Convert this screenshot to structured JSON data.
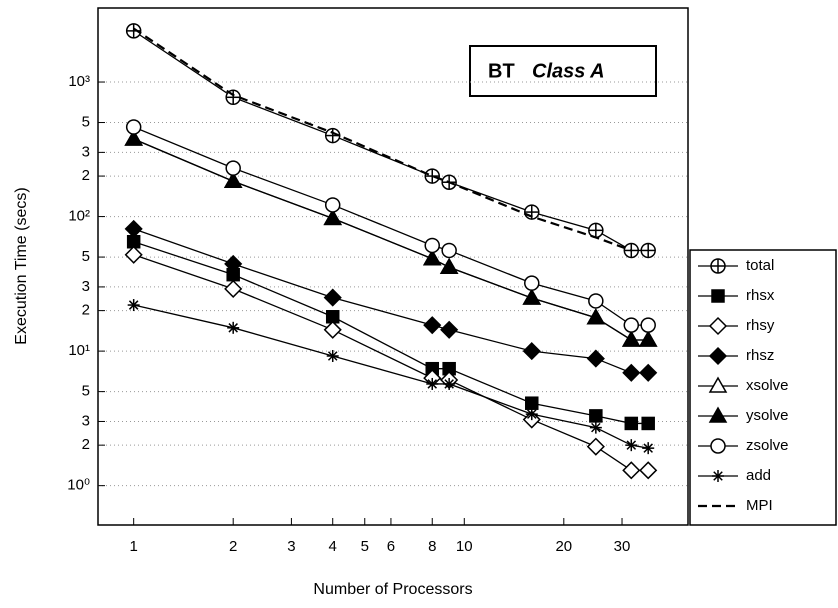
{
  "chart_data": {
    "type": "line",
    "title": "BT",
    "subtitle": "Class A",
    "x_label": "Number of Processors",
    "y_label": "Execution Time  (secs)",
    "x_scale": "log",
    "y_scale": "log",
    "grid": true,
    "legend": "right",
    "x": [
      1,
      2,
      4,
      8,
      9,
      16,
      25,
      32,
      36
    ],
    "xlim": [
      0.78,
      47.5
    ],
    "xticks": [
      1,
      2,
      3,
      4,
      5,
      6,
      8,
      10,
      20,
      30
    ],
    "ylim": [
      0.51,
      3550
    ],
    "yticks": [
      {
        "value": 1,
        "label": "10⁰"
      },
      2,
      3,
      5,
      {
        "value": 10,
        "label": "10¹"
      },
      {
        "value": 20,
        "label": "2"
      },
      {
        "value": 30,
        "label": "3"
      },
      {
        "value": 50,
        "label": "5"
      },
      {
        "value": 100,
        "label": "10²"
      },
      {
        "value": 200,
        "label": "2"
      },
      {
        "value": 300,
        "label": "3"
      },
      {
        "value": 500,
        "label": "5"
      },
      {
        "value": 1000,
        "label": "10³"
      }
    ],
    "series": [
      {
        "name": "total",
        "color": "#000000",
        "marker": "circle-plus",
        "values": [
          2400,
          770,
          400,
          200,
          180,
          108,
          79,
          56,
          56
        ]
      },
      {
        "name": "rhsx",
        "color": "#000000",
        "marker": "square-filled",
        "values": [
          65,
          37,
          18,
          7.4,
          7.4,
          4.1,
          3.3,
          2.9,
          2.9
        ]
      },
      {
        "name": "rhsy",
        "color": "#000000",
        "marker": "diamond-open",
        "values": [
          52,
          29,
          14.4,
          6.3,
          6.1,
          3.1,
          1.95,
          1.3,
          1.3
        ]
      },
      {
        "name": "rhsz",
        "color": "#000000",
        "marker": "diamond-filled",
        "values": [
          81,
          44.5,
          25,
          15.6,
          14.4,
          10,
          8.8,
          6.9,
          6.9
        ]
      },
      {
        "name": "xsolve",
        "color": "#000000",
        "marker": "triangle-open",
        "values": [
          377,
          183,
          97,
          48.6,
          42,
          24.8,
          17.7,
          12.1,
          12.1
        ]
      },
      {
        "name": "ysolve",
        "color": "#000000",
        "marker": "triangle-filled",
        "values": [
          377,
          183,
          97,
          48.6,
          42,
          24.8,
          17.7,
          12.1,
          12.1
        ]
      },
      {
        "name": "zsolve",
        "color": "#000000",
        "marker": "circle-open",
        "values": [
          463,
          229,
          122,
          61,
          56,
          32,
          23.6,
          15.6,
          15.6
        ]
      },
      {
        "name": "add",
        "color": "#000000",
        "marker": "asterisk",
        "values": [
          22,
          14.9,
          9.2,
          5.7,
          5.7,
          3.4,
          2.7,
          2.0,
          1.9
        ]
      },
      {
        "name": "MPI",
        "color": "#000000",
        "marker": "none",
        "dashed": true,
        "values": [
          2500,
          800,
          420,
          200,
          180,
          100,
          70,
          56,
          null
        ]
      }
    ]
  }
}
